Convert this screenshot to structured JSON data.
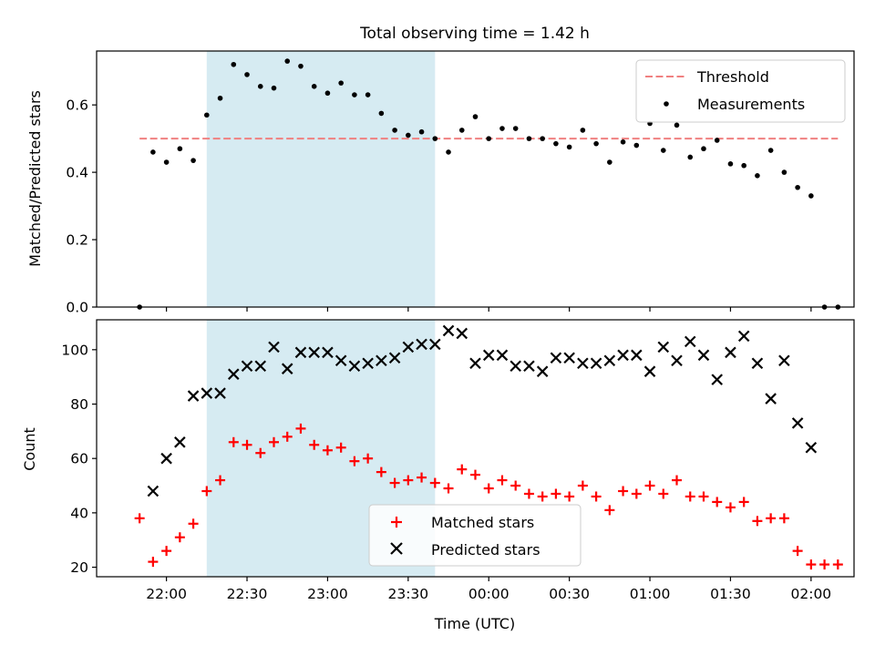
{
  "chart_data": [
    {
      "type": "scatter",
      "title": "Total observing time = 1.42 h",
      "ylabel": "Matched/Predicted stars",
      "xlabel": "",
      "ylim": [
        0,
        0.76
      ],
      "yticks": [
        "0.0",
        "0.2",
        "0.4",
        "0.6"
      ],
      "grid": false,
      "legend_position": "top-right",
      "shaded_interval": [
        "22:15",
        "23:40"
      ],
      "series": [
        {
          "name": "Threshold",
          "style": "dashed-line",
          "color": "#f08080",
          "x": [
            "21:50",
            "02:10"
          ],
          "y": [
            0.5,
            0.5
          ]
        },
        {
          "name": "Measurements",
          "style": "dot",
          "color": "#000000",
          "x": [
            "21:50",
            "21:55",
            "22:00",
            "22:05",
            "22:10",
            "22:15",
            "22:20",
            "22:25",
            "22:30",
            "22:35",
            "22:40",
            "22:45",
            "22:50",
            "22:55",
            "23:00",
            "23:05",
            "23:10",
            "23:15",
            "23:20",
            "23:25",
            "23:30",
            "23:35",
            "23:40",
            "23:45",
            "23:50",
            "23:55",
            "00:00",
            "00:05",
            "00:10",
            "00:15",
            "00:20",
            "00:25",
            "00:30",
            "00:35",
            "00:40",
            "00:45",
            "00:50",
            "00:55",
            "01:00",
            "01:05",
            "01:10",
            "01:15",
            "01:20",
            "01:25",
            "01:30",
            "01:35",
            "01:40",
            "01:45",
            "01:50",
            "01:55",
            "02:00",
            "02:05",
            "02:10"
          ],
          "y": [
            0.0,
            0.46,
            0.43,
            0.47,
            0.435,
            0.57,
            0.62,
            0.72,
            0.69,
            0.655,
            0.65,
            0.73,
            0.715,
            0.655,
            0.635,
            0.665,
            0.63,
            0.63,
            0.575,
            0.525,
            0.51,
            0.52,
            0.5,
            0.46,
            0.525,
            0.565,
            0.5,
            0.53,
            0.53,
            0.5,
            0.5,
            0.485,
            0.475,
            0.525,
            0.485,
            0.43,
            0.49,
            0.48,
            0.545,
            0.465,
            0.54,
            0.445,
            0.47,
            0.495,
            0.425,
            0.42,
            0.39,
            0.465,
            0.4,
            0.355,
            0.33,
            0.0,
            0.0
          ]
        }
      ]
    },
    {
      "type": "scatter",
      "title": "",
      "ylabel": "Count",
      "xlabel": "Time (UTC)",
      "ylim": [
        16.5,
        111
      ],
      "yticks": [
        "20",
        "40",
        "60",
        "80",
        "100"
      ],
      "xticks": [
        "22:00",
        "22:30",
        "23:00",
        "23:30",
        "00:00",
        "00:30",
        "01:00",
        "01:30",
        "02:00"
      ],
      "grid": false,
      "legend_position": "bottom-center",
      "shaded_interval": [
        "22:15",
        "23:40"
      ],
      "series": [
        {
          "name": "Matched stars",
          "style": "plus",
          "color": "#ff0000",
          "x": [
            "21:50",
            "21:55",
            "22:00",
            "22:05",
            "22:10",
            "22:15",
            "22:20",
            "22:25",
            "22:30",
            "22:35",
            "22:40",
            "22:45",
            "22:50",
            "22:55",
            "23:00",
            "23:05",
            "23:10",
            "23:15",
            "23:20",
            "23:25",
            "23:30",
            "23:35",
            "23:40",
            "23:45",
            "23:50",
            "23:55",
            "00:00",
            "00:05",
            "00:10",
            "00:15",
            "00:20",
            "00:25",
            "00:30",
            "00:35",
            "00:40",
            "00:45",
            "00:50",
            "00:55",
            "01:00",
            "01:05",
            "01:10",
            "01:15",
            "01:20",
            "01:25",
            "01:30",
            "01:35",
            "01:40",
            "01:45",
            "01:50",
            "01:55",
            "02:00",
            "02:05",
            "02:10"
          ],
          "y": [
            38,
            22,
            26,
            31,
            36,
            48,
            52,
            66,
            65,
            62,
            66,
            68,
            71,
            65,
            63,
            64,
            59,
            60,
            55,
            51,
            52,
            53,
            51,
            49,
            56,
            54,
            49,
            52,
            50,
            47,
            46,
            47,
            46,
            50,
            46,
            41,
            48,
            47,
            50,
            47,
            52,
            46,
            46,
            44,
            42,
            44,
            37,
            38,
            38,
            26,
            21,
            21,
            21
          ]
        },
        {
          "name": "Predicted stars",
          "style": "x",
          "color": "#000000",
          "x": [
            "21:55",
            "22:00",
            "22:05",
            "22:10",
            "22:15",
            "22:20",
            "22:25",
            "22:30",
            "22:35",
            "22:40",
            "22:45",
            "22:50",
            "22:55",
            "23:00",
            "23:05",
            "23:10",
            "23:15",
            "23:20",
            "23:25",
            "23:30",
            "23:35",
            "23:40",
            "23:45",
            "23:50",
            "23:55",
            "00:00",
            "00:05",
            "00:10",
            "00:15",
            "00:20",
            "00:25",
            "00:30",
            "00:35",
            "00:40",
            "00:45",
            "00:50",
            "00:55",
            "01:00",
            "01:05",
            "01:10",
            "01:15",
            "01:20",
            "01:25",
            "01:30",
            "01:35",
            "01:40",
            "01:45",
            "01:50",
            "01:55",
            "02:00"
          ],
          "y": [
            48,
            60,
            66,
            83,
            84,
            84,
            91,
            94,
            94,
            101,
            93,
            99,
            99,
            99,
            96,
            94,
            95,
            96,
            97,
            101,
            102,
            102,
            107,
            106,
            95,
            98,
            98,
            94,
            94,
            92,
            97,
            97,
            95,
            95,
            96,
            98,
            98,
            92,
            101,
            96,
            103,
            98,
            89,
            99,
            105,
            95,
            82,
            96,
            73,
            64
          ]
        }
      ]
    }
  ]
}
